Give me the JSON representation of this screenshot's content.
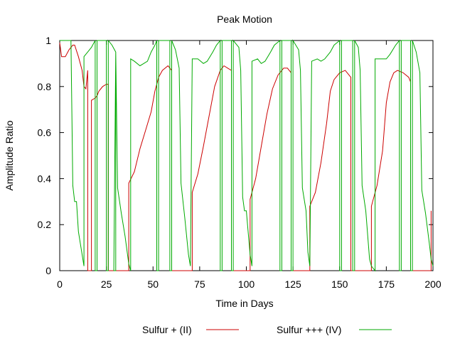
{
  "chart_data": {
    "type": "line",
    "title": "Peak Motion",
    "xlabel": "Time in Days",
    "ylabel": "Amplitude Ratio",
    "xlim": [
      0,
      200
    ],
    "ylim": [
      0,
      1
    ],
    "x_ticks": [
      0,
      25,
      50,
      75,
      100,
      125,
      150,
      175,
      200
    ],
    "y_ticks": [
      0,
      0.2,
      0.4,
      0.6,
      0.8,
      1
    ],
    "grid": false,
    "legend_position": "bottom",
    "series": [
      {
        "name": "Sulfur + (II)",
        "color": "#cc0000",
        "points": [
          [
            0,
            0.99
          ],
          [
            1,
            0.93
          ],
          [
            3,
            0.93
          ],
          [
            5,
            0.96
          ],
          [
            7,
            0.98
          ],
          [
            8,
            0.98
          ],
          [
            10,
            0.93
          ],
          [
            12,
            0.87
          ],
          [
            13,
            0.8
          ],
          [
            14,
            0.79
          ],
          [
            15,
            0.87
          ],
          [
            15,
            0.0
          ],
          [
            17,
            0.0
          ],
          [
            17,
            0.74
          ],
          [
            19,
            0.75
          ],
          [
            20,
            0.76
          ],
          [
            21,
            0.78
          ],
          [
            22,
            0.79
          ],
          [
            23,
            0.8
          ],
          [
            25,
            0.81
          ],
          [
            26,
            0.81
          ],
          [
            26,
            0.0
          ],
          [
            37,
            0.0
          ],
          [
            37,
            0.38
          ],
          [
            40,
            0.43
          ],
          [
            43,
            0.53
          ],
          [
            46,
            0.61
          ],
          [
            49,
            0.69
          ],
          [
            51,
            0.78
          ],
          [
            53,
            0.84
          ],
          [
            55,
            0.87
          ],
          [
            58,
            0.89
          ],
          [
            60,
            0.87
          ],
          [
            60,
            0.0
          ],
          [
            71,
            0.0
          ],
          [
            71,
            0.34
          ],
          [
            74,
            0.42
          ],
          [
            77,
            0.54
          ],
          [
            80,
            0.67
          ],
          [
            83,
            0.8
          ],
          [
            86,
            0.87
          ],
          [
            88,
            0.89
          ],
          [
            90,
            0.88
          ],
          [
            92,
            0.87
          ],
          [
            92,
            0.0
          ],
          [
            102,
            0.0
          ],
          [
            102,
            0.31
          ],
          [
            105,
            0.4
          ],
          [
            108,
            0.54
          ],
          [
            111,
            0.68
          ],
          [
            114,
            0.79
          ],
          [
            117,
            0.85
          ],
          [
            120,
            0.88
          ],
          [
            122,
            0.88
          ],
          [
            124,
            0.86
          ],
          [
            124,
            0.0
          ],
          [
            134,
            0.0
          ],
          [
            134,
            0.28
          ],
          [
            137,
            0.34
          ],
          [
            140,
            0.47
          ],
          [
            143,
            0.64
          ],
          [
            145,
            0.78
          ],
          [
            147,
            0.83
          ],
          [
            150,
            0.86
          ],
          [
            153,
            0.87
          ],
          [
            156,
            0.84
          ],
          [
            156,
            0.0
          ],
          [
            167,
            0.0
          ],
          [
            167,
            0.28
          ],
          [
            170,
            0.37
          ],
          [
            173,
            0.52
          ],
          [
            175,
            0.73
          ],
          [
            177,
            0.82
          ],
          [
            179,
            0.86
          ],
          [
            181,
            0.87
          ],
          [
            184,
            0.86
          ],
          [
            187,
            0.84
          ],
          [
            188,
            0.82
          ],
          [
            188,
            0.0
          ],
          [
            199,
            0.0
          ],
          [
            199,
            0.26
          ]
        ]
      },
      {
        "name": "Sulfur +++ (IV)",
        "color": "#00aa00",
        "points": [
          [
            0,
            1.0
          ],
          [
            6,
            1.0
          ],
          [
            7,
            0.37
          ],
          [
            8,
            0.3
          ],
          [
            9,
            0.3
          ],
          [
            10,
            0.17
          ],
          [
            12,
            0.07
          ],
          [
            13,
            0.02
          ],
          [
            13,
            0.93
          ],
          [
            15,
            0.95
          ],
          [
            17,
            0.97
          ],
          [
            19,
            1.0
          ],
          [
            19,
            0.0
          ],
          [
            20,
            0.0
          ],
          [
            20,
            1.0
          ],
          [
            25,
            1.0
          ],
          [
            25,
            0.0
          ],
          [
            26,
            0.0
          ],
          [
            26,
            1.0
          ],
          [
            28,
            0.98
          ],
          [
            30,
            0.95
          ],
          [
            30,
            0.0
          ],
          [
            29,
            0.0
          ],
          [
            30,
            0.95
          ],
          [
            31,
            0.36
          ],
          [
            33,
            0.25
          ],
          [
            35,
            0.15
          ],
          [
            37,
            0.03
          ],
          [
            38,
            0.0
          ],
          [
            38,
            0.92
          ],
          [
            40,
            0.91
          ],
          [
            43,
            0.89
          ],
          [
            45,
            0.9
          ],
          [
            47,
            0.91
          ],
          [
            49,
            0.95
          ],
          [
            51,
            0.98
          ],
          [
            52,
            1.0
          ],
          [
            52,
            0.0
          ],
          [
            53,
            0.0
          ],
          [
            53,
            1.0
          ],
          [
            59,
            1.0
          ],
          [
            59,
            0.0
          ],
          [
            60,
            0.0
          ],
          [
            60,
            1.0
          ],
          [
            62,
            0.96
          ],
          [
            64,
            0.88
          ],
          [
            65,
            0.38
          ],
          [
            67,
            0.23
          ],
          [
            69,
            0.07
          ],
          [
            70,
            0.02
          ],
          [
            71,
            0.92
          ],
          [
            74,
            0.92
          ],
          [
            77,
            0.9
          ],
          [
            79,
            0.91
          ],
          [
            82,
            0.95
          ],
          [
            84,
            0.98
          ],
          [
            86,
            1.0
          ],
          [
            86,
            0.0
          ],
          [
            87,
            0.0
          ],
          [
            87,
            1.0
          ],
          [
            92,
            1.0
          ],
          [
            92,
            0.0
          ],
          [
            93,
            0.0
          ],
          [
            93,
            1.0
          ],
          [
            96,
            0.97
          ],
          [
            97,
            0.87
          ],
          [
            98,
            0.32
          ],
          [
            99,
            0.26
          ],
          [
            100,
            0.26
          ],
          [
            102,
            0.07
          ],
          [
            103,
            0.02
          ],
          [
            103,
            0.91
          ],
          [
            106,
            0.92
          ],
          [
            108,
            0.9
          ],
          [
            110,
            0.91
          ],
          [
            113,
            0.95
          ],
          [
            115,
            0.98
          ],
          [
            118,
            1.0
          ],
          [
            118,
            0.0
          ],
          [
            119,
            0.0
          ],
          [
            119,
            1.0
          ],
          [
            124,
            1.0
          ],
          [
            124,
            0.0
          ],
          [
            125,
            0.0
          ],
          [
            125,
            1.0
          ],
          [
            128,
            0.96
          ],
          [
            129,
            0.87
          ],
          [
            130,
            0.36
          ],
          [
            132,
            0.26
          ],
          [
            133,
            0.08
          ],
          [
            134,
            0.02
          ],
          [
            135,
            0.91
          ],
          [
            138,
            0.92
          ],
          [
            140,
            0.91
          ],
          [
            142,
            0.92
          ],
          [
            145,
            0.95
          ],
          [
            147,
            0.98
          ],
          [
            150,
            1.0
          ],
          [
            150,
            0.0
          ],
          [
            151,
            0.0
          ],
          [
            151,
            1.0
          ],
          [
            157,
            1.0
          ],
          [
            157,
            0.0
          ],
          [
            158,
            0.0
          ],
          [
            158,
            1.0
          ],
          [
            160,
            0.97
          ],
          [
            161,
            0.87
          ],
          [
            162,
            0.37
          ],
          [
            164,
            0.26
          ],
          [
            166,
            0.05
          ],
          [
            167,
            0.02
          ],
          [
            169,
            0.0
          ],
          [
            169,
            0.92
          ],
          [
            172,
            0.92
          ],
          [
            175,
            0.92
          ],
          [
            177,
            0.94
          ],
          [
            180,
            0.98
          ],
          [
            182,
            1.0
          ],
          [
            182,
            0.0
          ],
          [
            183,
            0.0
          ],
          [
            183,
            1.0
          ],
          [
            188,
            1.0
          ],
          [
            188,
            0.0
          ],
          [
            189,
            0.0
          ],
          [
            189,
            1.0
          ],
          [
            191,
            0.95
          ],
          [
            193,
            0.86
          ],
          [
            194,
            0.35
          ],
          [
            196,
            0.25
          ],
          [
            198,
            0.12
          ],
          [
            199,
            0.05
          ],
          [
            200,
            0.02
          ]
        ]
      }
    ]
  }
}
